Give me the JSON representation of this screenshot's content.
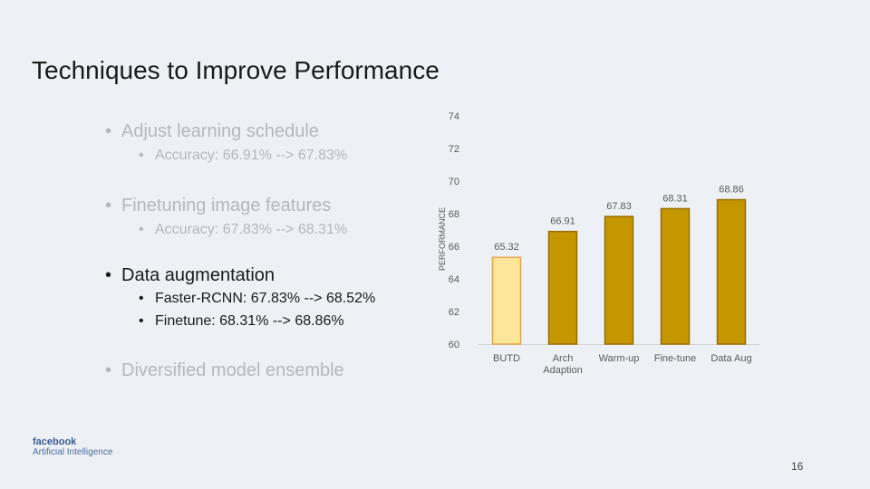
{
  "slide": {
    "title": "Techniques to Improve Performance",
    "page_number": "16"
  },
  "bullets": [
    {
      "text": "Adjust learning schedule",
      "level": 1,
      "state": "faded"
    },
    {
      "text": "Accuracy: 66.91% --> 67.83%",
      "level": 2,
      "state": "faded"
    },
    {
      "text": "Finetuning image features",
      "level": 1,
      "state": "faded"
    },
    {
      "text": "Accuracy: 67.83% --> 68.31%",
      "level": 2,
      "state": "faded"
    },
    {
      "text": "Data augmentation",
      "level": 1,
      "state": "active"
    },
    {
      "text": "Faster-RCNN: 67.83% --> 68.52%",
      "level": 2,
      "state": "active"
    },
    {
      "text": "Finetune: 68.31% --> 68.86%",
      "level": 2,
      "state": "active"
    },
    {
      "text": "Diversified model ensemble",
      "level": 1,
      "state": "faded"
    }
  ],
  "logo": {
    "name": "facebook",
    "subtitle": "Artificial Intelligence"
  },
  "chart_data": {
    "type": "bar",
    "categories": [
      "BUTD",
      "Arch\nAdaption",
      "Warm-up",
      "Fine-tune",
      "Data Aug"
    ],
    "values": [
      65.32,
      66.91,
      67.83,
      68.31,
      68.86
    ],
    "data_labels": [
      "65.32",
      "66.91",
      "67.83",
      "68.31",
      "68.86"
    ],
    "ylabel": "PERFORMANCE",
    "ylim": [
      60,
      74
    ],
    "yticks": [
      60,
      62,
      64,
      66,
      68,
      70,
      72,
      74
    ],
    "grid": false,
    "legend": "none",
    "colors": {
      "baseline_fill": "#fde59a",
      "baseline_stroke": "#e4a54a",
      "bar_fill": "#c49600",
      "bar_stroke": "#9a6e00",
      "axis": "#d4d4d4",
      "text": "#595959"
    }
  }
}
